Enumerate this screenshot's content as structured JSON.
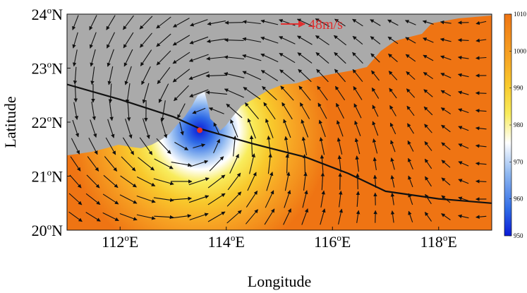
{
  "map": {
    "x_axis_label": "Longitude",
    "y_axis_label": "Latitude",
    "lon_range": [
      111,
      119
    ],
    "lat_range": [
      20,
      24
    ],
    "x_ticks": [
      {
        "value": 112,
        "deg": "112",
        "sup": "o",
        "hemi": "E"
      },
      {
        "value": 114,
        "deg": "114",
        "sup": "o",
        "hemi": "E"
      },
      {
        "value": 116,
        "deg": "116",
        "sup": "o",
        "hemi": "E"
      },
      {
        "value": 118,
        "deg": "118",
        "sup": "o",
        "hemi": "E"
      }
    ],
    "y_ticks": [
      {
        "value": 20,
        "deg": "20",
        "sup": "o",
        "hemi": "N"
      },
      {
        "value": 21,
        "deg": "21",
        "sup": "o",
        "hemi": "N"
      },
      {
        "value": 22,
        "deg": "22",
        "sup": "o",
        "hemi": "N"
      },
      {
        "value": 23,
        "deg": "23",
        "sup": "o",
        "hemi": "N"
      },
      {
        "value": 24,
        "deg": "24",
        "sup": "o",
        "hemi": "N"
      }
    ],
    "reference_vector_label": "48m/s",
    "reference_vector_color": "#e03030",
    "typhoon_center": {
      "lon": 113.5,
      "lat": 21.85
    },
    "center_marker_color": "#e03030",
    "track_color": "#111111",
    "track": [
      {
        "lon": 111.0,
        "lat": 22.7
      },
      {
        "lon": 112.0,
        "lat": 22.42
      },
      {
        "lon": 113.0,
        "lat": 22.1
      },
      {
        "lon": 113.5,
        "lat": 21.88
      },
      {
        "lon": 114.5,
        "lat": 21.6
      },
      {
        "lon": 115.5,
        "lat": 21.35
      },
      {
        "lon": 116.3,
        "lat": 21.05
      },
      {
        "lon": 117.0,
        "lat": 20.72
      },
      {
        "lon": 118.0,
        "lat": 20.58
      },
      {
        "lon": 119.0,
        "lat": 20.5
      }
    ],
    "land_color": "#aaaaaa",
    "background_pressure_color": "#f07c10"
  },
  "colorbar": {
    "ticks": [
      "1010",
      "1000",
      "990",
      "980",
      "970",
      "960",
      "950"
    ],
    "min": 950,
    "max": 1010,
    "colors": [
      "#0a1bd8",
      "#2f6be6",
      "#8fb8f0",
      "#ffffff",
      "#f8ec5c",
      "#f8c92c",
      "#f7a524",
      "#f2891a",
      "#ef7413"
    ]
  }
}
